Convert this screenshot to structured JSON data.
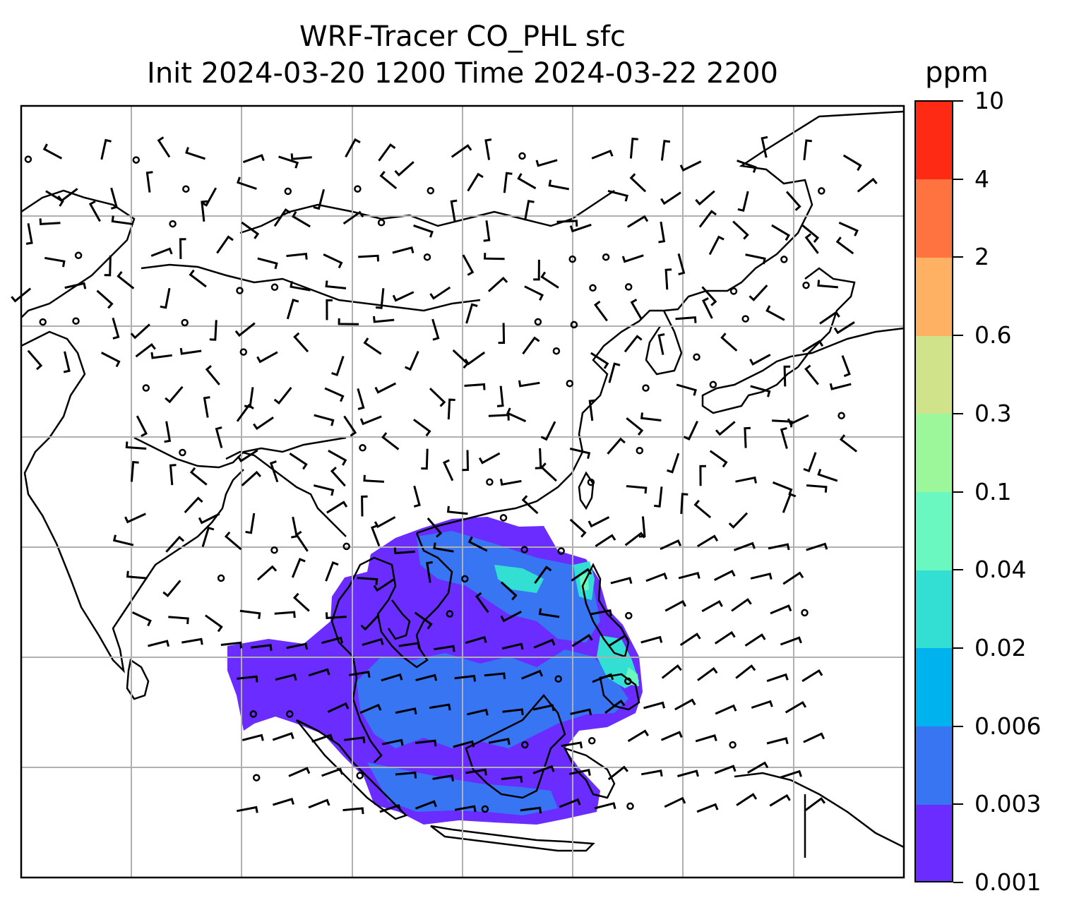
{
  "title": {
    "line1": "WRF-Tracer CO_PHL sfc",
    "line2": "Init 2024-03-20 1200 Time 2024-03-22 2200"
  },
  "colorbar": {
    "unit": "ppm",
    "ticks": [
      "0.001",
      "0.003",
      "0.006",
      "0.02",
      "0.04",
      "0.1",
      "0.3",
      "0.6",
      "2",
      "4",
      "10"
    ],
    "colors": [
      "#6a2cff",
      "#3775f2",
      "#00b2ee",
      "#32dfd2",
      "#6af8c0",
      "#9cf79b",
      "#d0e28a",
      "#ffb163",
      "#ff7340",
      "#ff2a14"
    ]
  },
  "map": {
    "gridlines": true,
    "field_colors": {
      "low": "#6a2cff",
      "mid": "#3775f2",
      "high": "#32dfd2",
      "peak": "#6af8c0"
    },
    "wind_symbols": "wind barbs and calm circles"
  }
}
